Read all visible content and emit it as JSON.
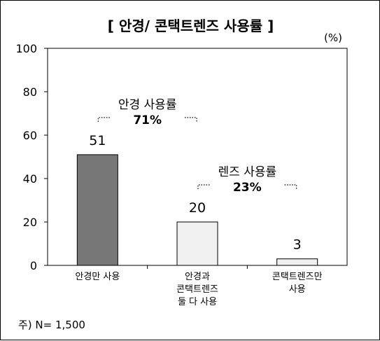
{
  "chart_data": {
    "type": "bar",
    "title": "[ 안경/ 콘택트렌즈 사용률 ]",
    "unit": "(%)",
    "categories": [
      [
        "안경만 사용"
      ],
      [
        "안경과",
        "콘택트렌즈",
        "둘 다 사용"
      ],
      [
        "콘택트렌즈만",
        "사용"
      ]
    ],
    "values": [
      51,
      20,
      3
    ],
    "ylim": [
      0,
      100
    ],
    "yticks": [
      0,
      20,
      40,
      60,
      80,
      100
    ],
    "bar_colors": [
      "#777777",
      "#f0f0f0",
      "#f0f0f0"
    ],
    "annotations": [
      {
        "label": "안경 사용률",
        "value": "71%",
        "span": [
          0,
          1
        ]
      },
      {
        "label": "렌즈 사용률",
        "value": "23%",
        "span": [
          1,
          2
        ]
      }
    ],
    "grid": false,
    "legend": "none"
  },
  "note": "주) N= 1,500"
}
